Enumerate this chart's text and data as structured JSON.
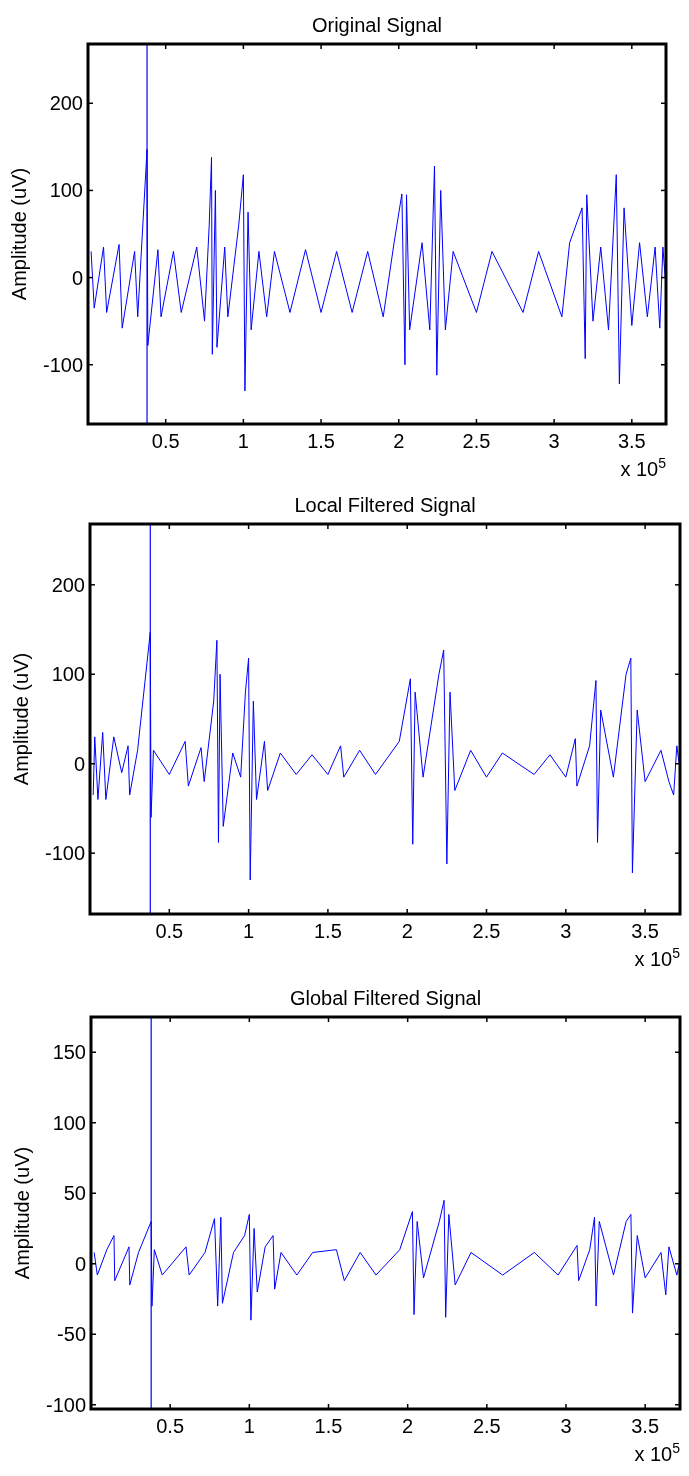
{
  "chart_data": [
    {
      "type": "line",
      "title": "Original Signal",
      "ylabel": "Amplitude (uV)",
      "annotations": [
        "x 10$^{5}$"
      ],
      "xlim": [
        0,
        3.72
      ],
      "xticks": [
        0.5,
        1,
        1.5,
        2,
        2.5,
        3,
        3.5
      ],
      "ylim": [
        -168,
        268
      ],
      "yticks": [
        -100,
        0,
        100,
        200
      ],
      "grid": false,
      "ref_lines": [
        {
          "axis": "x",
          "value": 0.38,
          "color": "#0000ff"
        }
      ],
      "series": [
        {
          "color": "#0000ff",
          "x": [
            0.02,
            0.04,
            0.1,
            0.12,
            0.2,
            0.22,
            0.3,
            0.32,
            0.38,
            0.385,
            0.45,
            0.47,
            0.55,
            0.6,
            0.7,
            0.75,
            0.78,
            0.795,
            0.8,
            0.82,
            0.83,
            0.88,
            0.9,
            0.97,
            1.0,
            1.01,
            1.03,
            1.05,
            1.1,
            1.15,
            1.2,
            1.3,
            1.4,
            1.5,
            1.6,
            1.7,
            1.8,
            1.9,
            1.97,
            2.02,
            2.04,
            2.05,
            2.07,
            2.15,
            2.2,
            2.23,
            2.245,
            2.27,
            2.3,
            2.35,
            2.5,
            2.6,
            2.8,
            2.9,
            3.05,
            3.1,
            3.18,
            3.2,
            3.21,
            3.25,
            3.3,
            3.35,
            3.4,
            3.42,
            3.45,
            3.5,
            3.55,
            3.6,
            3.65,
            3.68,
            3.7,
            3.715
          ],
          "values": [
            30,
            -35,
            35,
            -40,
            38,
            -58,
            30,
            -45,
            147,
            -78,
            32,
            -45,
            30,
            -40,
            35,
            -50,
            60,
            138,
            -88,
            100,
            -80,
            35,
            -45,
            60,
            118,
            -130,
            75,
            -60,
            30,
            -45,
            30,
            -40,
            32,
            -40,
            30,
            -40,
            30,
            -45,
            40,
            96,
            -100,
            95,
            -60,
            40,
            -60,
            128,
            -112,
            100,
            -60,
            30,
            -40,
            30,
            -40,
            30,
            -45,
            40,
            80,
            -93,
            95,
            -50,
            35,
            -60,
            118,
            -122,
            80,
            -55,
            40,
            -45,
            35,
            -58,
            35,
            0
          ]
        }
      ]
    },
    {
      "type": "line",
      "title": "Local Filtered Signal",
      "ylabel": "Amplitude (uV)",
      "annotations": [
        "x 10$^{5}$"
      ],
      "xlim": [
        0,
        3.72
      ],
      "xticks": [
        0.5,
        1,
        1.5,
        2,
        2.5,
        3,
        3.5
      ],
      "ylim": [
        -168,
        268
      ],
      "yticks": [
        -100,
        0,
        100,
        200
      ],
      "grid": false,
      "ref_lines": [
        {
          "axis": "x",
          "value": 0.38,
          "color": "#0000ff"
        }
      ],
      "series": [
        {
          "color": "#0000ff",
          "x": [
            0.02,
            0.03,
            0.05,
            0.08,
            0.1,
            0.15,
            0.2,
            0.24,
            0.25,
            0.3,
            0.38,
            0.385,
            0.4,
            0.5,
            0.6,
            0.62,
            0.7,
            0.72,
            0.78,
            0.8,
            0.81,
            0.82,
            0.84,
            0.9,
            0.95,
            0.98,
            1.0,
            1.01,
            1.03,
            1.05,
            1.1,
            1.12,
            1.2,
            1.3,
            1.4,
            1.5,
            1.58,
            1.6,
            1.7,
            1.8,
            1.95,
            2.02,
            2.035,
            2.05,
            2.1,
            2.2,
            2.23,
            2.25,
            2.27,
            2.3,
            2.4,
            2.5,
            2.6,
            2.8,
            2.9,
            3.0,
            3.06,
            3.07,
            3.15,
            3.19,
            3.2,
            3.22,
            3.3,
            3.38,
            3.41,
            3.42,
            3.45,
            3.5,
            3.6,
            3.65,
            3.68,
            3.7,
            3.715
          ],
          "values": [
            -35,
            30,
            -40,
            35,
            -40,
            30,
            -10,
            20,
            -35,
            15,
            147,
            -60,
            15,
            -12,
            25,
            -25,
            18,
            -20,
            70,
            138,
            -88,
            100,
            -70,
            12,
            -15,
            80,
            118,
            -130,
            70,
            -40,
            25,
            -30,
            12,
            -12,
            10,
            -12,
            20,
            -15,
            15,
            -12,
            25,
            95,
            -90,
            80,
            -15,
            100,
            127,
            -112,
            80,
            -30,
            15,
            -15,
            12,
            -12,
            10,
            -15,
            28,
            -25,
            20,
            93,
            -88,
            60,
            -15,
            100,
            118,
            -122,
            60,
            -20,
            15,
            -20,
            -35,
            20,
            0
          ]
        }
      ]
    },
    {
      "type": "line",
      "title": "Global Filtered Signal",
      "ylabel": "Amplitude (uV)",
      "annotations": [
        "x 10$^{5}$"
      ],
      "xlim": [
        0,
        3.72
      ],
      "xticks": [
        0.5,
        1,
        1.5,
        2,
        2.5,
        3,
        3.5
      ],
      "ylim": [
        -103,
        175
      ],
      "yticks": [
        -100,
        -50,
        0,
        50,
        100,
        150
      ],
      "grid": false,
      "ref_lines": [
        {
          "axis": "x",
          "value": 0.38,
          "color": "#0000ff"
        }
      ],
      "series": [
        {
          "color": "#0000ff",
          "x": [
            0.02,
            0.04,
            0.1,
            0.145,
            0.15,
            0.24,
            0.245,
            0.3,
            0.38,
            0.385,
            0.4,
            0.45,
            0.6,
            0.62,
            0.72,
            0.78,
            0.8,
            0.82,
            0.83,
            0.9,
            0.97,
            1.0,
            1.01,
            1.03,
            1.05,
            1.1,
            1.15,
            1.16,
            1.2,
            1.3,
            1.4,
            1.55,
            1.6,
            1.7,
            1.8,
            1.95,
            2.03,
            2.04,
            2.06,
            2.1,
            2.2,
            2.23,
            2.24,
            2.26,
            2.3,
            2.4,
            2.6,
            2.8,
            2.95,
            3.07,
            3.08,
            3.15,
            3.18,
            3.19,
            3.21,
            3.3,
            3.38,
            3.41,
            3.42,
            3.45,
            3.5,
            3.6,
            3.63,
            3.65,
            3.7,
            3.715
          ],
          "values": [
            8,
            -8,
            10,
            20,
            -12,
            12,
            -15,
            8,
            30,
            -30,
            10,
            -8,
            12,
            -8,
            8,
            32,
            -30,
            33,
            -28,
            8,
            20,
            35,
            -40,
            25,
            -20,
            12,
            20,
            -18,
            8,
            -8,
            8,
            10,
            -12,
            8,
            -8,
            10,
            37,
            -36,
            30,
            -10,
            30,
            45,
            -38,
            35,
            -15,
            8,
            -8,
            8,
            -8,
            13,
            -12,
            10,
            33,
            -30,
            30,
            -8,
            30,
            35,
            -35,
            20,
            -10,
            8,
            -22,
            12,
            -8,
            0
          ]
        }
      ]
    }
  ]
}
